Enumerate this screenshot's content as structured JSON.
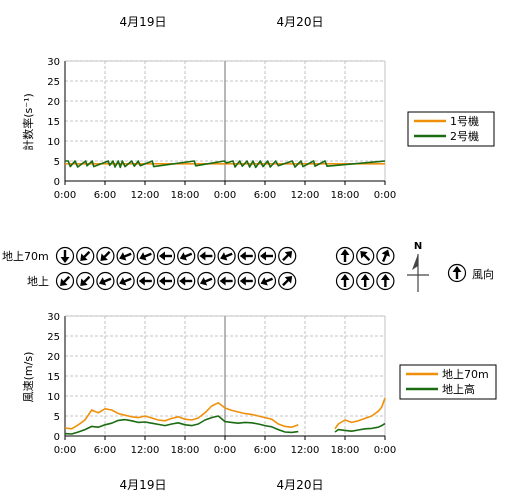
{
  "dates": {
    "day1": "4月19日",
    "day2": "4月20日"
  },
  "colors": {
    "orange": "#f0900a",
    "green": "#1a6b12",
    "grid": "#b4b4b4"
  },
  "chart_data": [
    {
      "type": "line",
      "ylabel": "計数率(s⁻¹)",
      "ylim": [
        0,
        30
      ],
      "yticks": [
        "0",
        "5",
        "10",
        "15",
        "20",
        "25",
        "30"
      ],
      "xticks": [
        "0:00",
        "6:00",
        "12:00",
        "18:00",
        "0:00",
        "6:00",
        "12:00",
        "18:00",
        "0:00"
      ],
      "x_hours": [
        0,
        48
      ],
      "series": [
        {
          "name": "1号機",
          "color": "#f0900a",
          "x": [
            0,
            48
          ],
          "values": [
            4.3,
            4.3
          ]
        },
        {
          "name": "2号機",
          "color": "#1a6b12",
          "x": [
            0,
            0.5,
            0.8,
            1.5,
            1.9,
            3.1,
            3.3,
            4.1,
            4.3,
            6.5,
            6.7,
            7.2,
            7.5,
            8.0,
            8.3,
            8.6,
            9.0,
            10.0,
            10.4,
            11.0,
            11.3,
            13.1,
            13.3,
            19.4,
            19.6,
            23.9,
            24.2,
            25.2,
            25.5,
            26.2,
            26.6,
            27.3,
            27.7,
            28.2,
            28.6,
            29.3,
            29.7,
            30.4,
            30.8,
            31.6,
            32.0,
            34.1,
            34.5,
            35.4,
            35.7,
            37.3,
            37.5,
            39.0,
            39.3,
            48
          ],
          "values": [
            5.0,
            5.0,
            3.6,
            5.0,
            3.5,
            5.0,
            3.8,
            5.0,
            3.6,
            5.0,
            3.9,
            5.0,
            3.5,
            5.0,
            3.4,
            5.0,
            3.6,
            5.0,
            3.7,
            5.0,
            3.8,
            5.0,
            3.6,
            5.0,
            3.8,
            5.0,
            4.5,
            5.0,
            3.5,
            5.0,
            3.7,
            5.0,
            3.5,
            5.0,
            3.4,
            5.0,
            3.6,
            5.0,
            3.5,
            5.0,
            3.8,
            5.0,
            3.5,
            5.0,
            3.6,
            5.0,
            3.7,
            5.0,
            3.7,
            5.0
          ]
        }
      ],
      "legend": "right"
    },
    {
      "type": "line",
      "ylabel": "風速(m/s)",
      "ylim": [
        0,
        30
      ],
      "yticks": [
        "0",
        "5",
        "10",
        "15",
        "20",
        "25",
        "30"
      ],
      "xticks": [
        "0:00",
        "6:00",
        "12:00",
        "18:00",
        "0:00",
        "6:00",
        "12:00",
        "18:00",
        "0:00"
      ],
      "x_hours": [
        0,
        48
      ],
      "series": [
        {
          "name": "地上70m",
          "color": "#f0900a",
          "segments": [
            {
              "x": [
                0,
                1,
                2,
                3,
                4,
                5,
                6,
                7,
                8,
                9,
                10,
                11,
                12,
                13,
                14,
                15,
                16,
                17,
                18,
                19,
                20,
                21,
                22,
                23,
                24,
                25,
                26,
                27,
                28,
                29,
                30,
                31,
                32,
                33,
                34,
                35
              ],
              "values": [
                2.0,
                1.8,
                2.8,
                4.0,
                6.5,
                5.8,
                6.8,
                6.5,
                5.6,
                5.2,
                4.8,
                4.6,
                5.0,
                4.5,
                4.0,
                3.8,
                4.4,
                4.8,
                4.2,
                4.0,
                4.5,
                5.8,
                7.5,
                8.3,
                7.0,
                6.4,
                6.0,
                5.6,
                5.4,
                5.0,
                4.6,
                4.2,
                3.0,
                2.4,
                2.2,
                2.8
              ]
            },
            {
              "x": [
                40.5,
                41,
                42,
                43,
                44,
                45,
                46,
                47,
                47.5,
                48
              ],
              "values": [
                1.8,
                3.0,
                4.0,
                3.4,
                3.8,
                4.4,
                5.0,
                6.2,
                7.2,
                9.5
              ]
            }
          ]
        },
        {
          "name": "地上高",
          "color": "#1a6b12",
          "segments": [
            {
              "x": [
                0,
                1,
                2,
                3,
                4,
                5,
                6,
                7,
                8,
                9,
                10,
                11,
                12,
                13,
                14,
                15,
                16,
                17,
                18,
                19,
                20,
                21,
                22,
                23,
                24,
                25,
                26,
                27,
                28,
                29,
                30,
                31,
                32,
                33,
                34,
                35
              ],
              "values": [
                0.6,
                0.5,
                1.0,
                1.6,
                2.4,
                2.2,
                2.8,
                3.2,
                3.9,
                4.1,
                3.8,
                3.4,
                3.5,
                3.2,
                2.9,
                2.6,
                3.0,
                3.3,
                2.8,
                2.6,
                3.0,
                4.0,
                4.6,
                5.0,
                3.6,
                3.4,
                3.2,
                3.4,
                3.3,
                3.0,
                2.6,
                2.3,
                1.6,
                1.0,
                0.9,
                1.1
              ]
            },
            {
              "x": [
                40.5,
                41,
                42,
                43,
                44,
                45,
                46,
                47,
                47.5,
                48
              ],
              "values": [
                1.0,
                1.6,
                1.4,
                1.2,
                1.5,
                1.8,
                1.9,
                2.2,
                2.6,
                3.1
              ]
            }
          ]
        }
      ],
      "legend": "right"
    }
  ],
  "wind": {
    "row1_label": "地上70m",
    "row2_label": "地上",
    "compass_label": "N",
    "legend_label": "風向",
    "row1_left": [
      180,
      225,
      225,
      247.5,
      247.5,
      270,
      247.5,
      270,
      247.5,
      270,
      270,
      45
    ],
    "row2_left": [
      225,
      225,
      247.5,
      247.5,
      270,
      270,
      270,
      247.5,
      270,
      270,
      247.5,
      45
    ],
    "row1_right": [
      0,
      315,
      22.5
    ],
    "row2_right": [
      0,
      0,
      0
    ],
    "legend_dir": 0
  }
}
